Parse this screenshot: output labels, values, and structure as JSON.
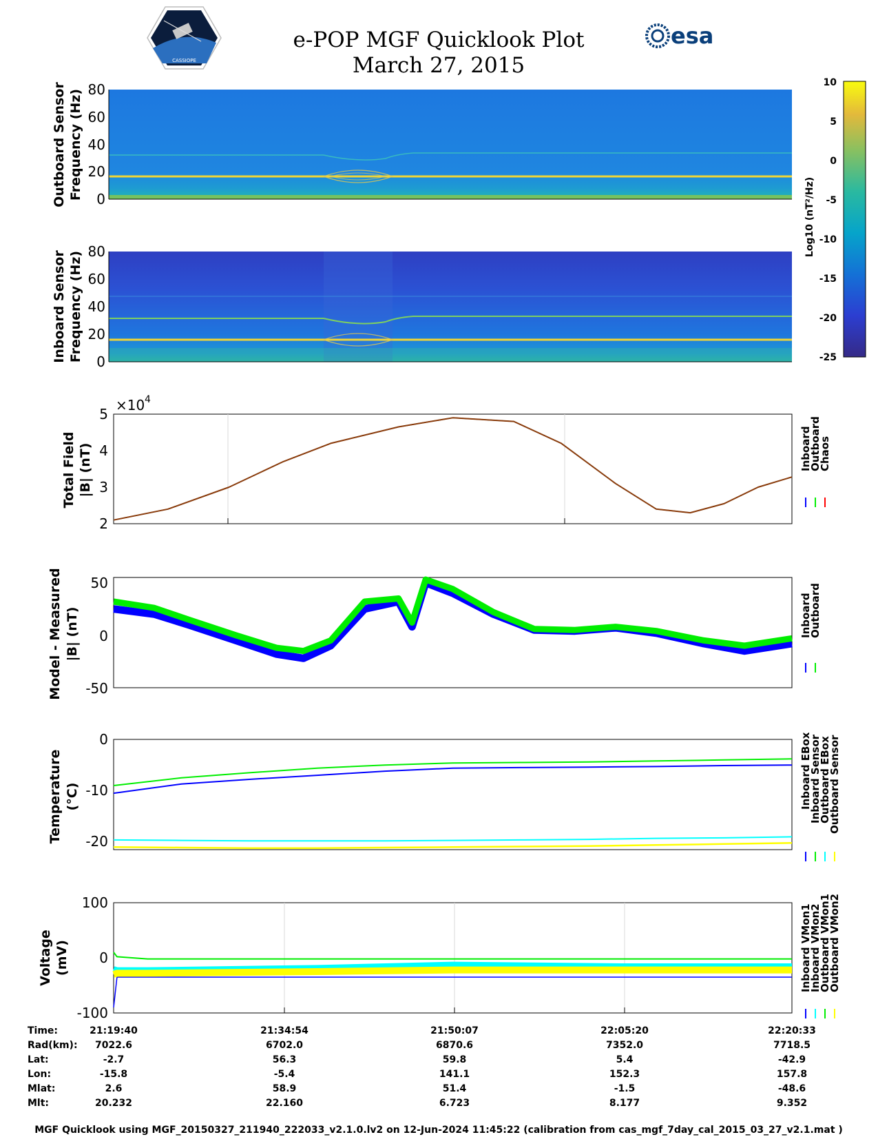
{
  "header": {
    "title_line1": "e-POP MGF Quicklook Plot",
    "title_line2": "March 27, 2015",
    "logo_left_text": "CASSIOPE",
    "logo_right_text": "esa"
  },
  "colors": {
    "inboard": "#0000ff",
    "outboard": "#00ee00",
    "chaos": "#ff0000",
    "cyan": "#00ffff",
    "yellow": "#ffff00",
    "total_field_line": "#8b3a0a",
    "grid": "#d9d9d9"
  },
  "colorbar": {
    "label": "Log10 (nT²/Hz)",
    "ticks": [
      "10",
      "5",
      "0",
      "-5",
      "-10",
      "-15",
      "-20",
      "-25"
    ],
    "range": [
      -25,
      10
    ]
  },
  "spectrograms": [
    {
      "ylabel_line1": "Outboard Sensor",
      "ylabel_line2": "Frequency (Hz)",
      "yticks": [
        "80",
        "60",
        "40",
        "20",
        "0"
      ]
    },
    {
      "ylabel_line1": "Inboard Sensor",
      "ylabel_line2": "Frequency (Hz)",
      "yticks": [
        "80",
        "60",
        "40",
        "20",
        "0"
      ]
    }
  ],
  "panels": {
    "total_field": {
      "ylabel_line1": "Total Field",
      "ylabel_line2": "|B| (nT)",
      "exponent": "×10",
      "exponent_power": "4",
      "yticks": [
        "5",
        "4",
        "3",
        "2"
      ],
      "legend": [
        "Inboard",
        "Outboard",
        "Chaos"
      ]
    },
    "model_measured": {
      "ylabel_line1": "Model - Measured",
      "ylabel_line2": "|B| (nT)",
      "yticks": [
        "50",
        "0",
        "-50"
      ],
      "legend": [
        "Inboard",
        "Outboard"
      ]
    },
    "temperature": {
      "ylabel_line1": "Temperature",
      "ylabel_line2": "(°C)",
      "yticks": [
        "0",
        "-10",
        "-20"
      ],
      "legend": [
        "Inboard EBox",
        "Inboard Sensor",
        "Outboard EBox",
        "Outboard Sensor"
      ]
    },
    "voltage": {
      "ylabel_line1": "Voltage",
      "ylabel_line2": "(mV)",
      "yticks": [
        "100",
        "0",
        "-100"
      ],
      "legend": [
        "Inboard VMon1",
        "Inboard VMon2",
        "Outboard VMon1",
        "Outboard VMon2"
      ]
    }
  },
  "orbit_table": {
    "row_labels": [
      "Time:",
      "Rad(km):",
      "Lat:",
      "Lon:",
      "Mlat:",
      "Mlt:"
    ],
    "columns": [
      [
        "21:19:40",
        "7022.6",
        "-2.7",
        "-15.8",
        "2.6",
        "20.232"
      ],
      [
        "21:34:54",
        "6702.0",
        "56.3",
        "-5.4",
        "58.9",
        "22.160"
      ],
      [
        "21:50:07",
        "6870.6",
        "59.8",
        "141.1",
        "51.4",
        "6.723"
      ],
      [
        "22:05:20",
        "7352.0",
        "5.4",
        "152.3",
        "-1.5",
        "8.177"
      ],
      [
        "22:20:33",
        "7718.5",
        "-42.9",
        "157.8",
        "-48.6",
        "9.352"
      ]
    ]
  },
  "footer": "MGF Quicklook using MGF_20150327_211940_222033_v2.1.0.lv2 on 12-Jun-2024 11:45:22 (calibration from cas_mgf_7day_cal_2015_03_27_v2.1.mat )",
  "chart_data": [
    {
      "type": "heatmap",
      "name": "Outboard Sensor spectrogram",
      "ylabel": "Outboard Sensor Frequency (Hz)",
      "ylim": [
        0,
        80
      ],
      "clim": [
        -25,
        10
      ],
      "features": [
        {
          "freq_hz": 16,
          "level": 8
        },
        {
          "freq_hz": 32,
          "level": -2
        }
      ]
    },
    {
      "type": "heatmap",
      "name": "Inboard Sensor spectrogram",
      "ylabel": "Inboard Sensor Frequency (Hz)",
      "ylim": [
        0,
        80
      ],
      "clim": [
        -25,
        10
      ],
      "features": [
        {
          "freq_hz": 16,
          "level": 8
        },
        {
          "freq_hz": 32,
          "level": 0
        }
      ]
    },
    {
      "type": "line",
      "ylabel": "Total Field |B| (nT)",
      "ylim": [
        20000,
        50000
      ],
      "x_frac": [
        0,
        0.08,
        0.17,
        0.25,
        0.32,
        0.42,
        0.5,
        0.59,
        0.66,
        0.74,
        0.8,
        0.85,
        0.9,
        0.95,
        1
      ],
      "series": [
        {
          "name": "Inboard",
          "values": [
            21000,
            24000,
            30000,
            37000,
            42000,
            46500,
            49000,
            48000,
            42000,
            31000,
            24000,
            23000,
            25500,
            30000,
            32800
          ]
        },
        {
          "name": "Outboard",
          "values": [
            21000,
            24000,
            30000,
            37000,
            42000,
            46500,
            49000,
            48000,
            42000,
            31000,
            24000,
            23000,
            25500,
            30000,
            32800
          ]
        },
        {
          "name": "Chaos",
          "values": [
            21000,
            24000,
            30000,
            37000,
            42000,
            46500,
            49000,
            48000,
            42000,
            31000,
            24000,
            23000,
            25500,
            30000,
            32800
          ]
        }
      ]
    },
    {
      "type": "line",
      "ylabel": "Model - Measured |B| (nT)",
      "ylim": [
        -50,
        55
      ],
      "x_frac": [
        0,
        0.06,
        0.11,
        0.18,
        0.24,
        0.28,
        0.32,
        0.37,
        0.42,
        0.44,
        0.46,
        0.5,
        0.56,
        0.62,
        0.68,
        0.74,
        0.8,
        0.87,
        0.93,
        1
      ],
      "series": [
        {
          "name": "Inboard",
          "values": [
            25,
            20,
            10,
            -5,
            -18,
            -22,
            -10,
            25,
            32,
            8,
            50,
            40,
            20,
            5,
            4,
            7,
            2,
            -8,
            -15,
            -8
          ]
        },
        {
          "name": "Outboard",
          "values": [
            32,
            26,
            15,
            0,
            -12,
            -15,
            -5,
            32,
            35,
            12,
            53,
            44,
            22,
            6,
            5,
            8,
            4,
            -5,
            -10,
            -3
          ]
        }
      ]
    },
    {
      "type": "line",
      "ylabel": "Temperature (°C)",
      "ylim": [
        -21.5,
        0
      ],
      "x_frac": [
        0,
        0.1,
        0.2,
        0.3,
        0.4,
        0.5,
        0.6,
        0.7,
        0.8,
        0.9,
        1
      ],
      "series": [
        {
          "name": "Inboard EBox",
          "values": [
            -10.5,
            -8.7,
            -7.8,
            -7.0,
            -6.2,
            -5.6,
            -5.5,
            -5.4,
            -5.3,
            -5.1,
            -5.0
          ]
        },
        {
          "name": "Inboard Sensor",
          "values": [
            -9.0,
            -7.5,
            -6.5,
            -5.6,
            -5.0,
            -4.6,
            -4.5,
            -4.4,
            -4.2,
            -4.0,
            -3.8
          ]
        },
        {
          "name": "Outboard EBox",
          "values": [
            -19.6,
            -19.7,
            -19.8,
            -19.8,
            -19.8,
            -19.7,
            -19.6,
            -19.5,
            -19.3,
            -19.2,
            -19.0
          ]
        },
        {
          "name": "Outboard Sensor",
          "values": [
            -21.0,
            -21.1,
            -21.2,
            -21.2,
            -21.1,
            -21.0,
            -20.9,
            -20.8,
            -20.6,
            -20.4,
            -20.2
          ]
        }
      ]
    },
    {
      "type": "line",
      "ylabel": "Voltage (mV)",
      "ylim": [
        -100,
        100
      ],
      "x_frac": [
        0,
        0.005,
        0.05,
        0.3,
        0.5,
        0.75,
        1
      ],
      "series": [
        {
          "name": "Inboard VMon1",
          "values": [
            -90,
            -35,
            -35,
            -35,
            -35,
            -35,
            -35
          ]
        },
        {
          "name": "Inboard VMon2",
          "values": [
            10,
            2,
            -2,
            -2,
            -2,
            -2,
            -2
          ]
        },
        {
          "name": "Outboard VMon1",
          "values": [
            -20,
            -22,
            -22,
            -18,
            -12,
            -15,
            -15
          ]
        },
        {
          "name": "Outboard VMon2",
          "values": [
            -30,
            -28,
            -28,
            -25,
            -22,
            -22,
            -22
          ]
        }
      ]
    }
  ]
}
